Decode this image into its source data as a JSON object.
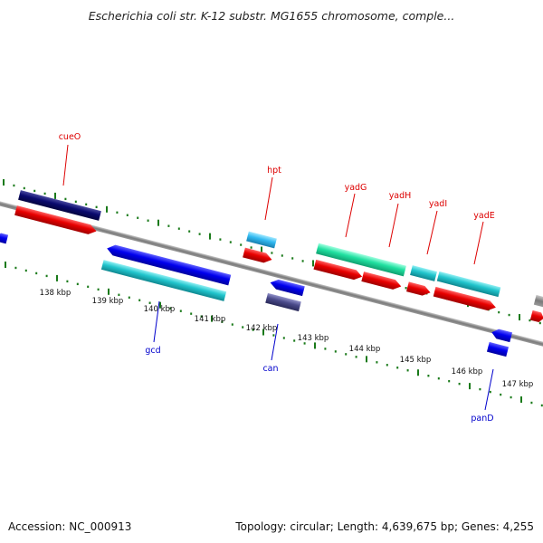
{
  "title": "Escherichia coli str. K-12 substr. MG1655 chromosome, comple...",
  "accession": "Accession: NC_000913",
  "summary": "Topology: circular; Length: 4,639,675 bp; Genes: 4,255",
  "ticks": [
    "138 kbp",
    "139 kbp",
    "140 kbp",
    "141 kbp",
    "142 kbp",
    "143 kbp",
    "144 kbp",
    "145 kbp",
    "146 kbp",
    "147 kbp"
  ],
  "gene_labels_top": [
    "cueO",
    "hpt",
    "yadG",
    "yadH",
    "yadI",
    "yadE"
  ],
  "gene_labels_bottom": [
    "gcd",
    "can",
    "panD"
  ],
  "colors": {
    "backbone": "#808080",
    "tick": "#1a7a1a",
    "red_feature": "#e00000",
    "blue_feature": "#0000e6",
    "cyan_feature": "#20c4cc",
    "navy_feature": "#0a0a6e",
    "green_feature": "#20e0a0",
    "sky_feature": "#30b8f0",
    "slate_feature": "#4a4a8a"
  }
}
